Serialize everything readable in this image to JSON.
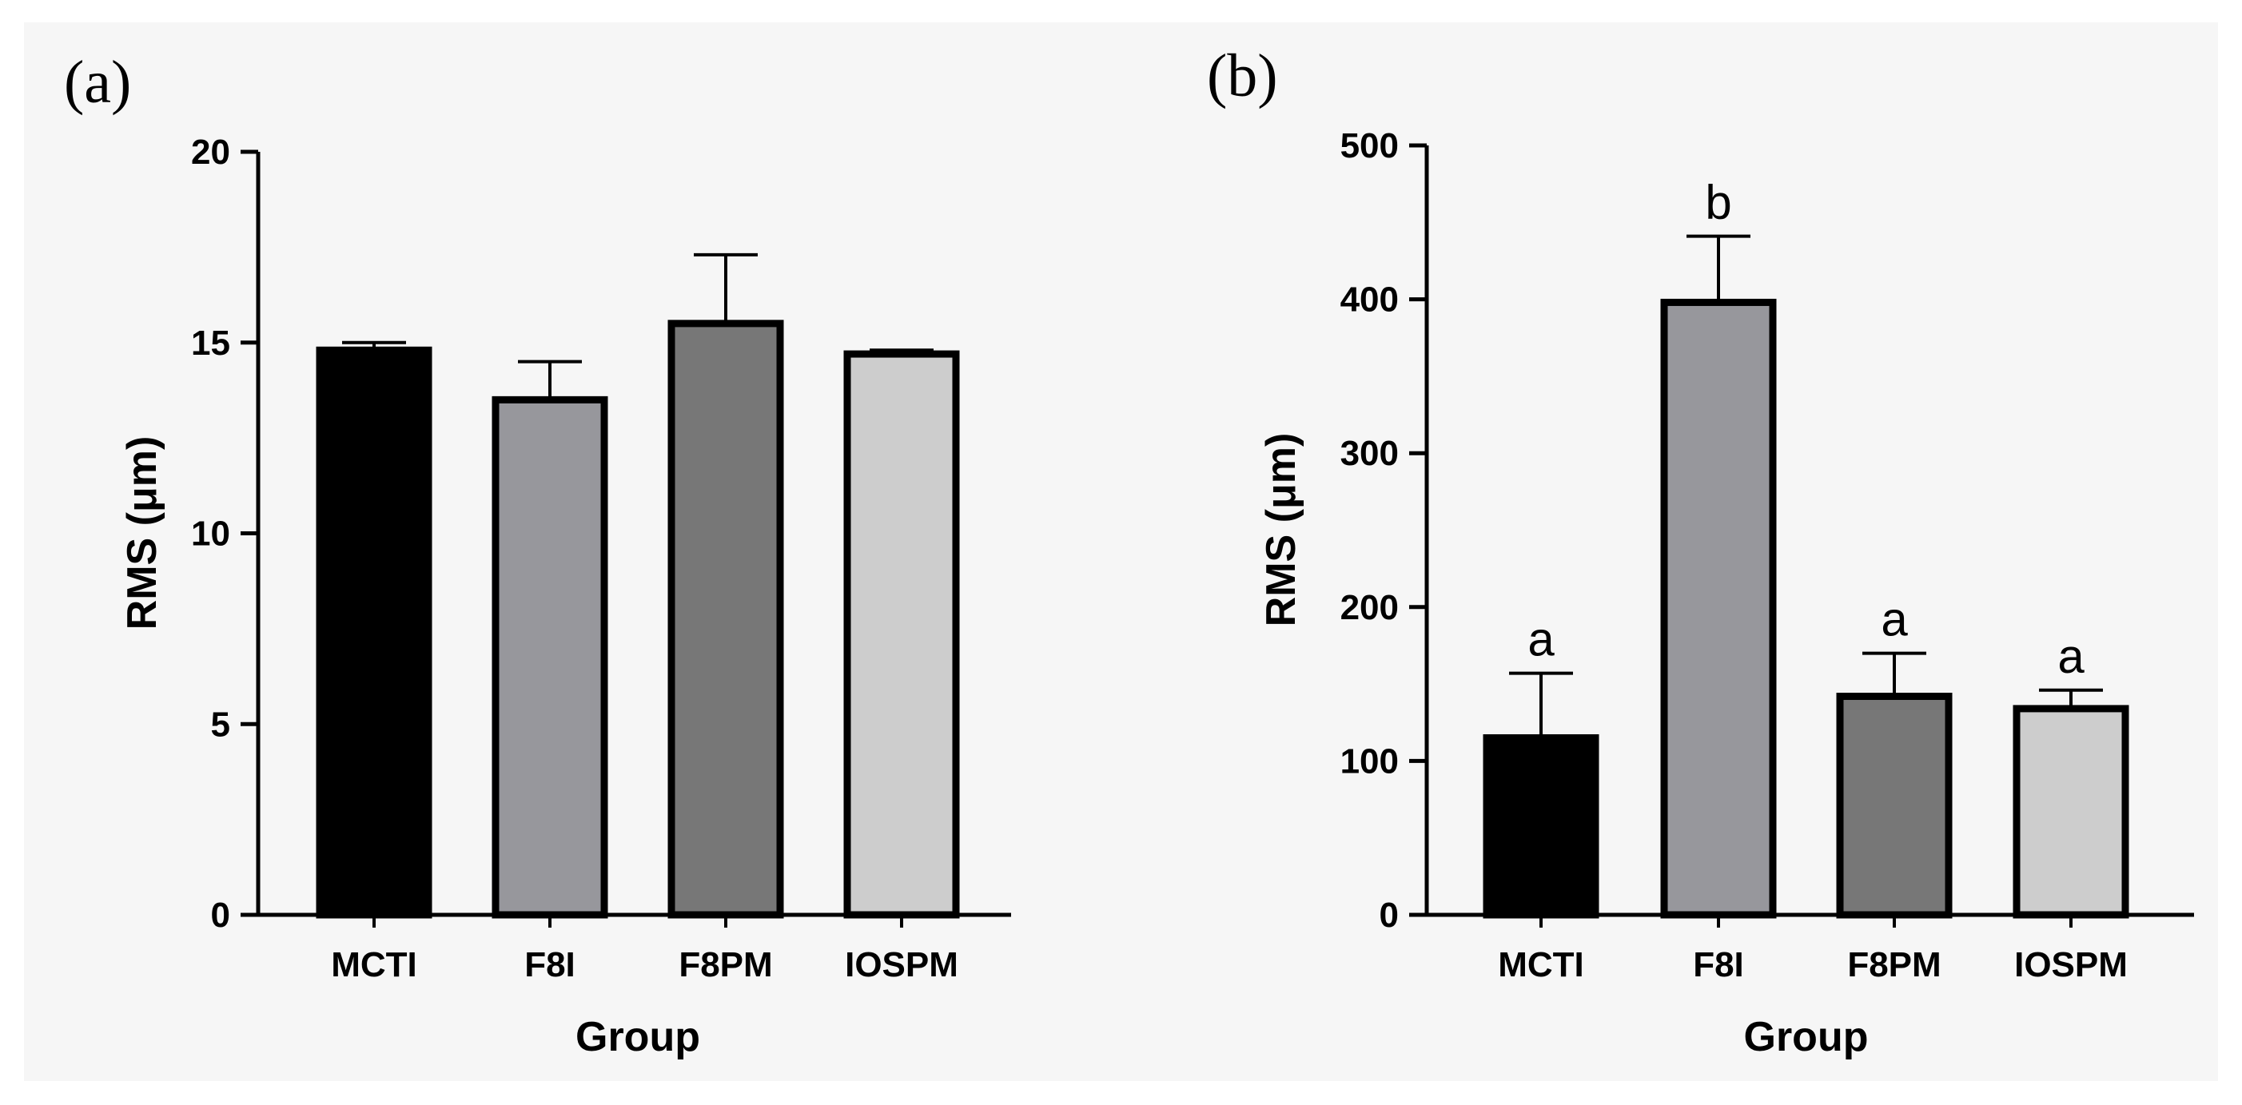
{
  "chart_data": [
    {
      "type": "bar",
      "panel_label": "(a)",
      "categories": [
        "MCTI",
        "F8I",
        "F8PM",
        "IOSPM"
      ],
      "values": [
        14.8,
        13.5,
        15.5,
        14.7
      ],
      "error_upper": [
        15.0,
        14.5,
        17.3,
        14.8
      ],
      "colors": [
        "#000000",
        "#97979c",
        "#777777",
        "#cdcdcd"
      ],
      "xlabel": "Group",
      "ylabel": "RMS (μm)",
      "ylim": [
        0,
        20
      ],
      "yticks": [
        0,
        5,
        10,
        15,
        20
      ],
      "annotations": []
    },
    {
      "type": "bar",
      "panel_label": "(b)",
      "categories": [
        "MCTI",
        "F8I",
        "F8PM",
        "IOSPM"
      ],
      "values": [
        115,
        398,
        142,
        134
      ],
      "error_upper": [
        157,
        441,
        170,
        146
      ],
      "colors": [
        "#000000",
        "#97979c",
        "#777777",
        "#cdcdcd"
      ],
      "xlabel": "Group",
      "ylabel": "RMS (μm)",
      "ylim": [
        0,
        500
      ],
      "yticks": [
        0,
        100,
        200,
        300,
        400,
        500
      ],
      "annotations": [
        "a",
        "b",
        "a",
        "a"
      ]
    }
  ]
}
